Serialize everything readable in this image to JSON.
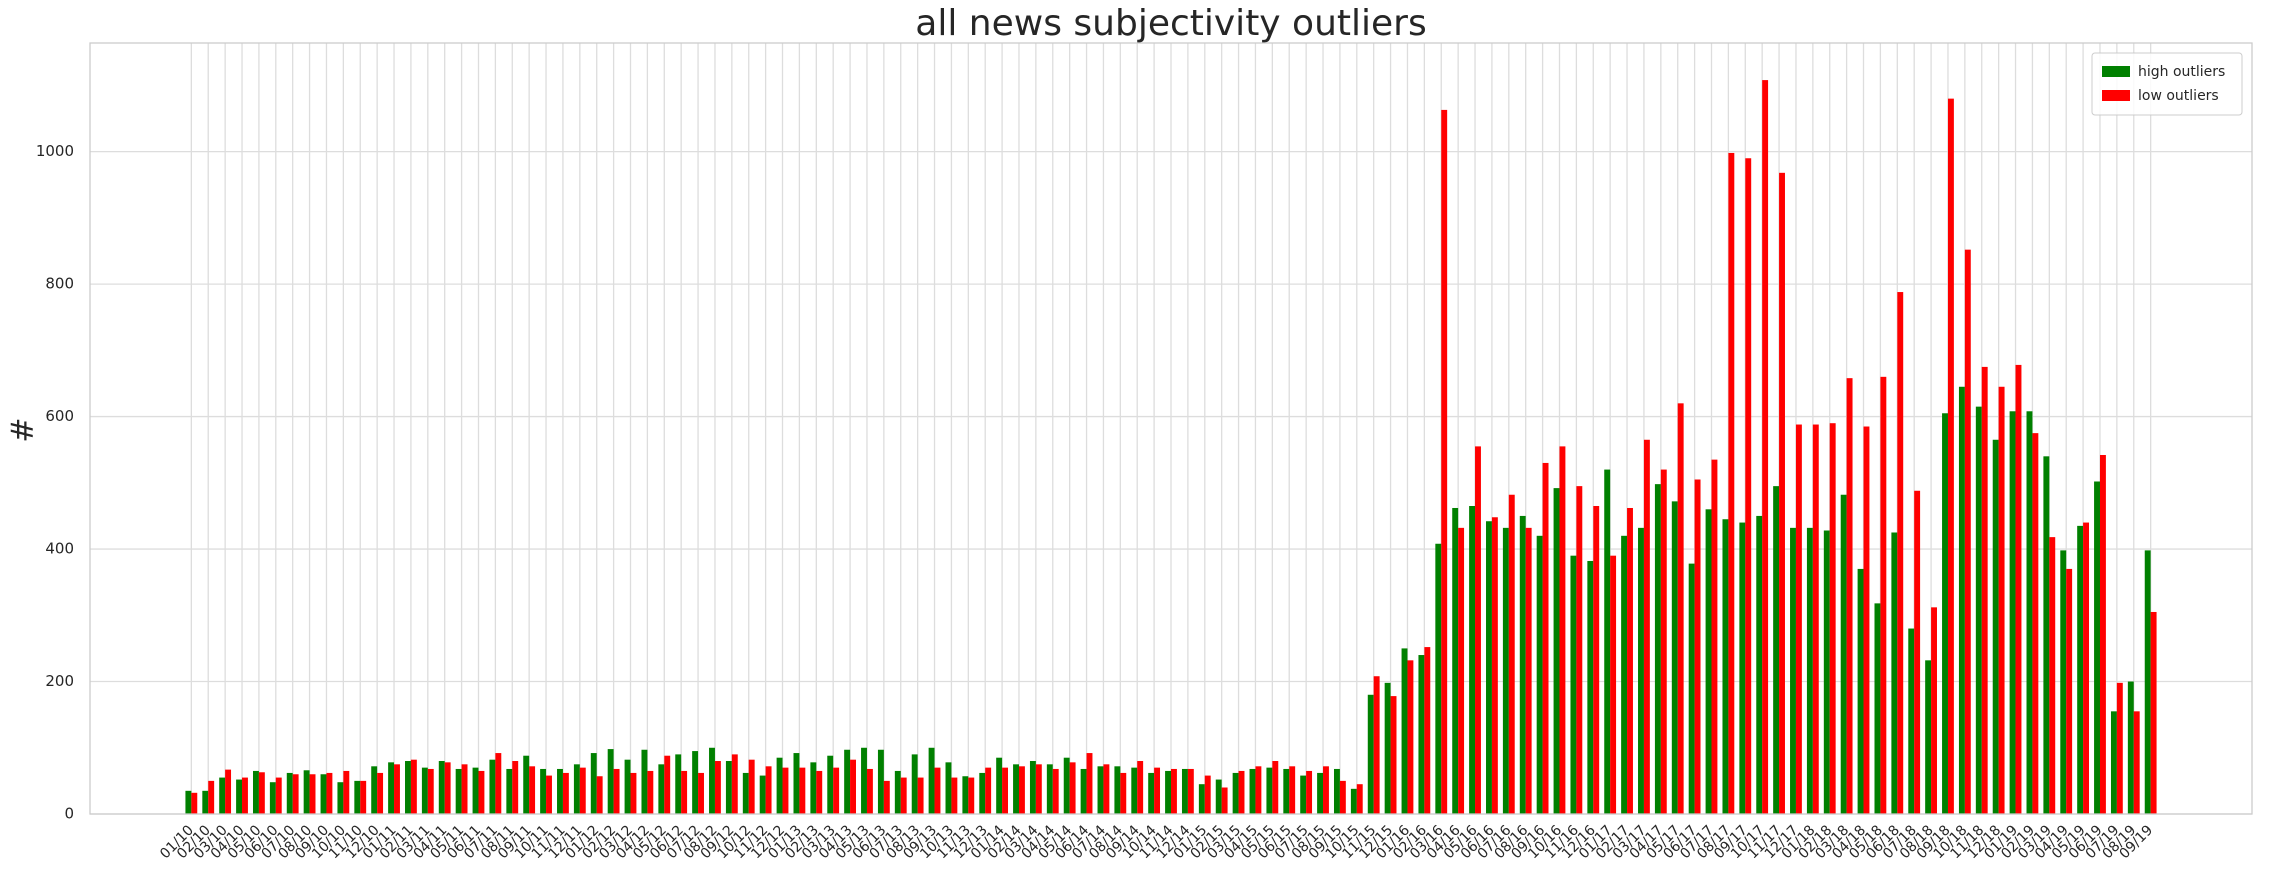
{
  "chart_data": {
    "type": "bar",
    "title": "all news subjectivity outliers",
    "y_label": "#",
    "categories": [
      "01/10",
      "02/10",
      "03/10",
      "04/10",
      "05/10",
      "06/10",
      "07/10",
      "08/10",
      "09/10",
      "10/10",
      "11/10",
      "12/10",
      "01/11",
      "02/11",
      "03/11",
      "04/11",
      "05/11",
      "06/11",
      "07/11",
      "08/11",
      "09/11",
      "10/11",
      "11/11",
      "12/11",
      "01/12",
      "02/12",
      "03/12",
      "04/12",
      "05/12",
      "06/12",
      "07/12",
      "08/12",
      "09/12",
      "10/12",
      "11/12",
      "12/12",
      "01/13",
      "02/13",
      "03/13",
      "04/13",
      "05/13",
      "06/13",
      "07/13",
      "08/13",
      "09/13",
      "10/13",
      "11/13",
      "12/13",
      "01/14",
      "02/14",
      "03/14",
      "04/14",
      "05/14",
      "06/14",
      "07/14",
      "08/14",
      "09/14",
      "10/14",
      "11/14",
      "12/14",
      "01/15",
      "02/15",
      "03/15",
      "04/15",
      "05/15",
      "06/15",
      "07/15",
      "08/15",
      "09/15",
      "10/15",
      "11/15",
      "12/15",
      "01/16",
      "02/16",
      "03/16",
      "04/16",
      "05/16",
      "06/16",
      "07/16",
      "08/16",
      "09/16",
      "10/16",
      "11/16",
      "12/16",
      "01/17",
      "02/17",
      "03/17",
      "04/17",
      "05/17",
      "06/17",
      "07/17",
      "08/17",
      "09/17",
      "10/17",
      "11/17",
      "12/17",
      "01/18",
      "02/18",
      "03/18",
      "04/18",
      "05/18",
      "06/18",
      "07/18",
      "08/18",
      "09/18",
      "10/18",
      "11/18",
      "12/18",
      "01/19",
      "02/19",
      "03/19",
      "04/19",
      "05/19",
      "06/19",
      "07/19",
      "08/19",
      "09/19"
    ],
    "series": [
      {
        "name": "high outliers",
        "color": "#008000",
        "values": [
          35,
          35,
          55,
          52,
          65,
          48,
          62,
          66,
          60,
          48,
          50,
          72,
          78,
          80,
          70,
          80,
          68,
          70,
          82,
          68,
          88,
          68,
          68,
          75,
          92,
          98,
          82,
          97,
          75,
          90,
          95,
          100,
          80,
          62,
          58,
          85,
          92,
          78,
          88,
          97,
          100,
          97,
          65,
          90,
          100,
          78,
          57,
          62,
          85,
          75,
          80,
          75,
          85,
          68,
          72,
          72,
          70,
          62,
          65,
          68,
          45,
          52,
          62,
          68,
          70,
          68,
          58,
          62,
          68,
          38,
          180,
          198,
          250,
          240,
          408,
          462,
          465,
          442,
          432,
          450,
          420,
          492,
          390,
          382,
          520,
          420,
          432,
          498,
          472,
          378,
          460,
          445,
          440,
          450,
          495,
          432,
          432,
          428,
          482,
          370,
          318,
          425,
          280,
          232,
          605,
          645,
          615,
          565,
          608,
          608,
          540,
          398,
          435,
          502,
          155,
          200,
          398
        ]
      },
      {
        "name": "low outliers",
        "color": "#ff0000",
        "values": [
          32,
          50,
          67,
          55,
          63,
          55,
          60,
          60,
          62,
          65,
          50,
          62,
          75,
          82,
          68,
          78,
          75,
          65,
          92,
          80,
          72,
          58,
          62,
          70,
          57,
          68,
          62,
          65,
          88,
          65,
          62,
          80,
          90,
          82,
          72,
          70,
          70,
          65,
          70,
          82,
          68,
          50,
          55,
          55,
          70,
          55,
          55,
          70,
          70,
          72,
          75,
          68,
          78,
          92,
          75,
          62,
          80,
          70,
          68,
          68,
          58,
          40,
          65,
          72,
          80,
          72,
          65,
          72,
          50,
          45,
          208,
          178,
          232,
          252,
          1063,
          432,
          555,
          448,
          482,
          432,
          530,
          555,
          495,
          465,
          390,
          462,
          565,
          520,
          620,
          505,
          535,
          998,
          990,
          1108,
          968,
          588,
          588,
          590,
          658,
          585,
          660,
          788,
          488,
          312,
          1080,
          852,
          675,
          645,
          678,
          575,
          418,
          370,
          440,
          542,
          198,
          155,
          305
        ]
      }
    ],
    "ylim": [
      0,
      1164
    ],
    "yticks": [
      0,
      200,
      400,
      600,
      800,
      1000
    ],
    "grid": true,
    "legend": "upper right"
  }
}
